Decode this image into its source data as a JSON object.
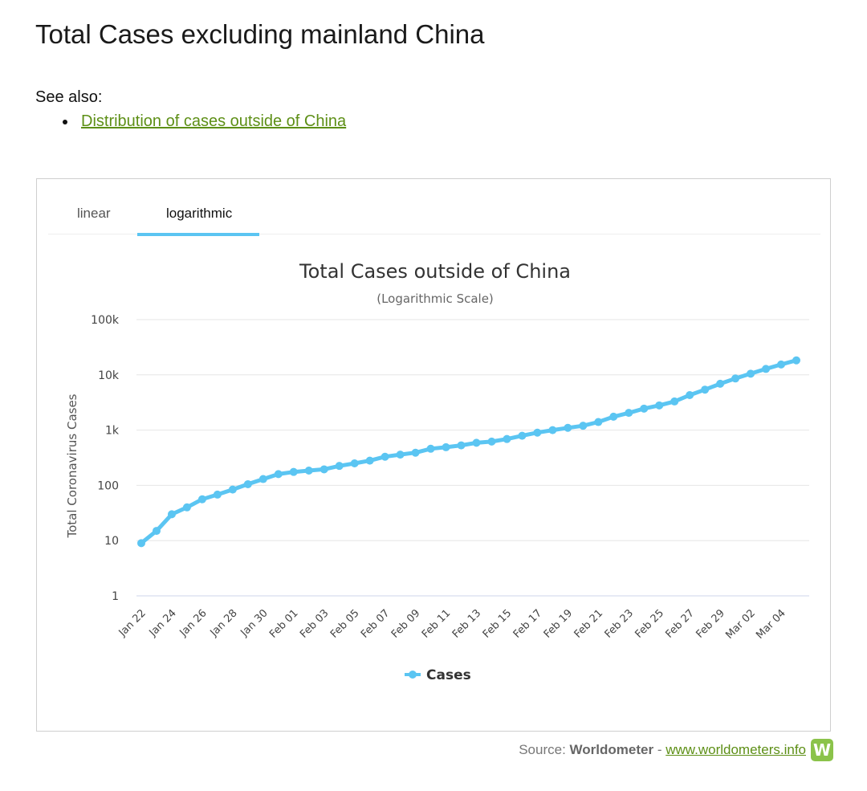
{
  "page": {
    "title": "Total Cases excluding mainland China",
    "see_also_label": "See also:",
    "see_also_links": [
      "Distribution of cases outside of China"
    ]
  },
  "tabs": [
    {
      "label": "linear",
      "active": false
    },
    {
      "label": "logarithmic",
      "active": true
    }
  ],
  "source": {
    "prefix": "Source:",
    "brand": "Worldometer",
    "separator": "-",
    "link": "www.worldometers.info",
    "logo_letter": "W"
  },
  "colors": {
    "series": "#5bc5f2",
    "link": "#5d8f16",
    "logo": "#8bc34a"
  },
  "chart_data": {
    "type": "line",
    "title": "Total Cases outside of China",
    "subtitle": "(Logarithmic Scale)",
    "ylabel": "Total Coronavirus Cases",
    "xlabel": "",
    "yscale": "log",
    "ylim": [
      1,
      100000
    ],
    "yticks": [
      1,
      10,
      100,
      1000,
      10000,
      100000
    ],
    "ytick_labels": [
      "1",
      "10",
      "100",
      "1k",
      "10k",
      "100k"
    ],
    "grid": true,
    "legend": "bottom-center",
    "x": [
      "Jan 22",
      "Jan 23",
      "Jan 24",
      "Jan 25",
      "Jan 26",
      "Jan 27",
      "Jan 28",
      "Jan 29",
      "Jan 30",
      "Jan 31",
      "Feb 01",
      "Feb 02",
      "Feb 03",
      "Feb 04",
      "Feb 05",
      "Feb 06",
      "Feb 07",
      "Feb 08",
      "Feb 09",
      "Feb 10",
      "Feb 11",
      "Feb 12",
      "Feb 13",
      "Feb 14",
      "Feb 15",
      "Feb 16",
      "Feb 17",
      "Feb 18",
      "Feb 19",
      "Feb 20",
      "Feb 21",
      "Feb 22",
      "Feb 23",
      "Feb 24",
      "Feb 25",
      "Feb 26",
      "Feb 27",
      "Feb 28",
      "Feb 29",
      "Mar 01",
      "Mar 02",
      "Mar 03",
      "Mar 04",
      "Mar 05"
    ],
    "x_tick_labels": [
      "Jan 22",
      "Jan 24",
      "Jan 26",
      "Jan 28",
      "Jan 30",
      "Feb 01",
      "Feb 03",
      "Feb 05",
      "Feb 07",
      "Feb 09",
      "Feb 11",
      "Feb 13",
      "Feb 15",
      "Feb 17",
      "Feb 19",
      "Feb 21",
      "Feb 23",
      "Feb 25",
      "Feb 27",
      "Feb 29",
      "Mar 02",
      "Mar 04"
    ],
    "series": [
      {
        "name": "Cases",
        "values": [
          9,
          15,
          30,
          40,
          56,
          68,
          84,
          105,
          130,
          160,
          175,
          185,
          195,
          225,
          250,
          280,
          330,
          360,
          390,
          460,
          490,
          530,
          590,
          620,
          690,
          790,
          900,
          1000,
          1100,
          1200,
          1400,
          1750,
          2050,
          2450,
          2800,
          3300,
          4300,
          5400,
          6900,
          8600,
          10500,
          12800,
          15400,
          18300
        ]
      }
    ]
  }
}
